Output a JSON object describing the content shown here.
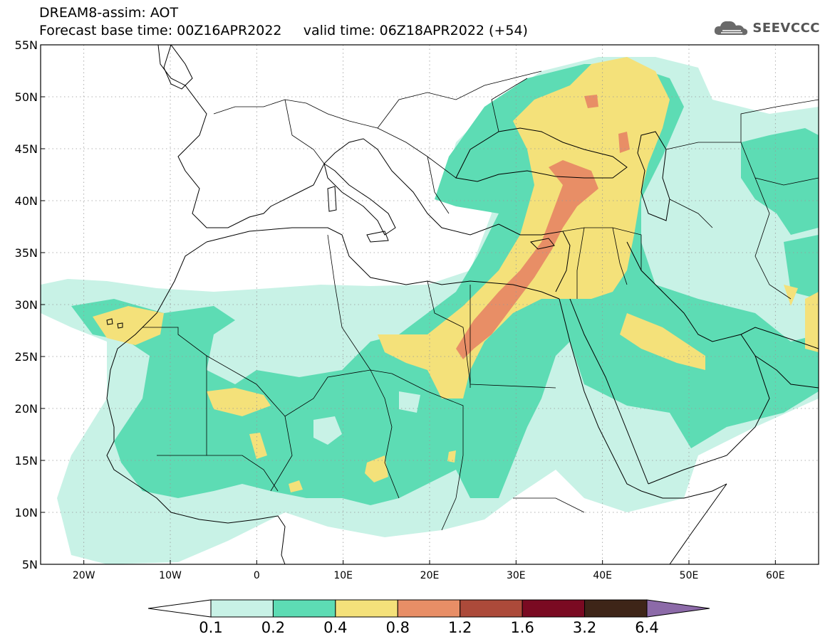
{
  "header": {
    "line1": "DREAM8-assim: AOT",
    "line2": "Forecast base time: 00Z16APR2022     valid time: 06Z18APR2022 (+54)",
    "logo_text": "SEEVCCC",
    "logo_icon": "cloud-icon"
  },
  "map": {
    "lon_range": [
      -25,
      65
    ],
    "lat_range": [
      5,
      55
    ],
    "lat_labels": [
      "5N",
      "10N",
      "15N",
      "20N",
      "25N",
      "30N",
      "35N",
      "40N",
      "45N",
      "50N",
      "55N"
    ],
    "lat_values": [
      5,
      10,
      15,
      20,
      25,
      30,
      35,
      40,
      45,
      50,
      55
    ],
    "lon_labels": [
      "20W",
      "10W",
      "0",
      "10E",
      "20E",
      "30E",
      "40E",
      "50E",
      "60E"
    ],
    "lon_values": [
      -20,
      -10,
      0,
      10,
      20,
      30,
      40,
      50,
      60
    ],
    "grid": "dotted"
  },
  "colorbar": {
    "labels": [
      "0.1",
      "0.2",
      "0.4",
      "0.8",
      "1.2",
      "1.6",
      "3.2",
      "6.4"
    ],
    "colors": [
      "#ffffff",
      "#c8f2e6",
      "#5ddcb4",
      "#f4e17a",
      "#e88e66",
      "#ac4a3a",
      "#7a0a22",
      "#3e2518",
      "#8c6aa8"
    ]
  }
}
